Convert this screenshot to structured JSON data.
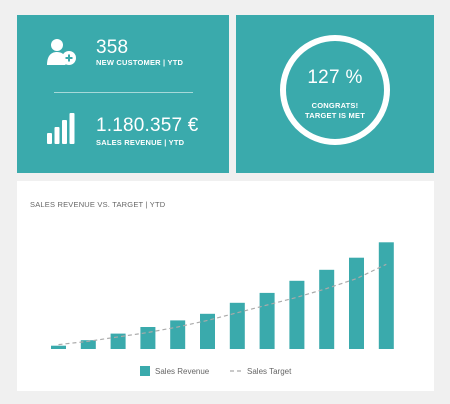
{
  "kpis": {
    "customers": {
      "value": "358",
      "label": "NEW CUSTOMER | YTD",
      "icon": "add-user-icon"
    },
    "revenue": {
      "value": "1.180.357 €",
      "label": "SALES REVENUE | YTD",
      "icon": "bar-chart-icon"
    }
  },
  "target": {
    "value": "127 %",
    "message_line1": "CONGRATS!",
    "message_line2": "TARGET IS MET"
  },
  "colors": {
    "tile": "#3aaaac",
    "bar": "#3aaaac",
    "target_line": "#aaaaaa"
  },
  "chart_data": {
    "type": "bar",
    "title": "SALES REVENUE VS. TARGET | YTD",
    "categories": [
      "",
      "",
      "",
      "",
      "",
      "",
      "",
      "",
      "",
      "",
      "",
      ""
    ],
    "series": [
      {
        "name": "Sales Revenue",
        "type": "bar",
        "values": [
          3,
          8,
          14,
          20,
          26,
          32,
          42,
          51,
          62,
          72,
          83,
          97
        ]
      },
      {
        "name": "Sales Target",
        "type": "line",
        "style": "dashed",
        "values": [
          4,
          7,
          11,
          15,
          20,
          26,
          33,
          40,
          47,
          55,
          64,
          77
        ]
      }
    ],
    "ylim": [
      0,
      100
    ],
    "grid": false,
    "legend": "bottom-center"
  }
}
